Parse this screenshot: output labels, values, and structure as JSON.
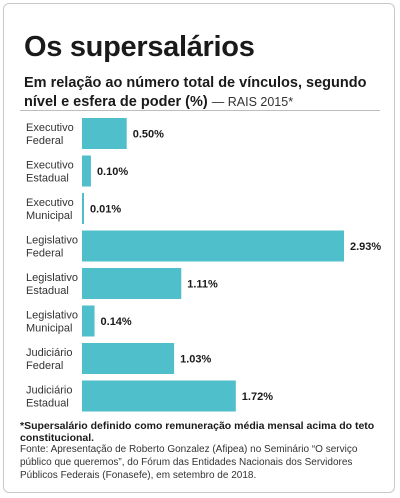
{
  "header": {
    "title": "Os supersalários",
    "subtitle": "Em relação ao número total de vínculos, segundo nível e esfera de poder (%)",
    "source_tag": "— RAIS 2015*"
  },
  "chart_data": {
    "type": "bar",
    "orientation": "horizontal",
    "categories": [
      [
        "Executivo",
        "Federal"
      ],
      [
        "Executivo",
        "Estadual"
      ],
      [
        "Executivo",
        "Municipal"
      ],
      [
        "Legislativo",
        "Federal"
      ],
      [
        "Legislativo",
        "Estadual"
      ],
      [
        "Legislativo",
        "Municipal"
      ],
      [
        "Judiciário",
        "Federal"
      ],
      [
        "Judiciário",
        "Estadual"
      ]
    ],
    "values": [
      0.5,
      0.1,
      0.01,
      2.93,
      1.11,
      0.14,
      1.03,
      1.72
    ],
    "value_labels": [
      "0.50%",
      "0.10%",
      "0.01%",
      "2.93%",
      "1.11%",
      "0.14%",
      "1.03%",
      "1.72%"
    ],
    "bar_color": "#4fbfcb",
    "xlim": [
      0,
      2.93
    ],
    "grid": false,
    "legend": "none"
  },
  "footer": {
    "note": "*Supersalário definido como remuneração média mensal acima do teto constitucional.",
    "source": "Fonte: Apresentação de Roberto Gonzalez (Afipea) no Seminário “O serviço público que queremos”, do Fórum das Entidades Nacionais dos Servidores Públicos Federais (Fonasefe), em setembro de 2018."
  }
}
